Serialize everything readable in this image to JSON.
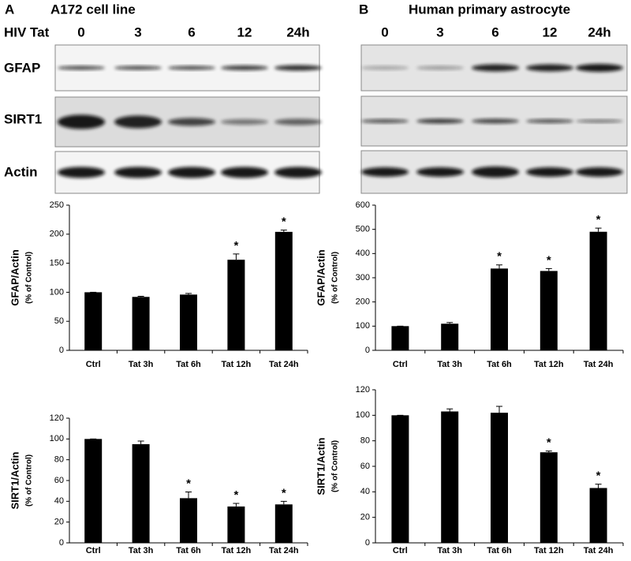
{
  "panels": [
    {
      "letter": "A",
      "title": "A172 cell line",
      "treatment_label": "HIV Tat",
      "lanes": [
        "0",
        "3",
        "6",
        "12",
        "24h"
      ],
      "blots": [
        "GFAP",
        "SIRT1",
        "Actin"
      ]
    },
    {
      "letter": "B",
      "title": "Human primary astrocyte",
      "lanes": [
        "0",
        "3",
        "6",
        "12",
        "24h"
      ]
    }
  ],
  "chart_data": [
    {
      "type": "bar",
      "ylabel": "GFAP/Actin",
      "ysublabel": "(% of Control)",
      "color": "#000000",
      "categories": [
        "Ctrl",
        "Tat 3h",
        "Tat 6h",
        "Tat 12h",
        "Tat 24h"
      ],
      "values": [
        100,
        92,
        96,
        156,
        204
      ],
      "errors": [
        0,
        1,
        2,
        10,
        3
      ],
      "significance": [
        null,
        null,
        null,
        "*",
        "*"
      ],
      "ylim": [
        0,
        250
      ],
      "yticks": [
        0,
        50,
        100,
        150,
        200,
        250
      ]
    },
    {
      "type": "bar",
      "ylabel": "SIRT1/Actin",
      "ysublabel": "(% of Control)",
      "color": "#000000",
      "categories": [
        "Ctrl",
        "Tat 3h",
        "Tat 6h",
        "Tat 12h",
        "Tat 24h"
      ],
      "values": [
        100,
        95,
        43,
        35,
        37
      ],
      "errors": [
        0,
        3,
        6,
        3,
        3
      ],
      "significance": [
        null,
        null,
        "*",
        "*",
        "*"
      ],
      "ylim": [
        0,
        120
      ],
      "yticks": [
        0,
        20,
        40,
        60,
        80,
        100,
        120
      ]
    },
    {
      "type": "bar",
      "ylabel": "GFAP/Actin",
      "ysublabel": "(% of Control)",
      "color": "#000000",
      "categories": [
        "Ctrl",
        "Tat 3h",
        "Tat 6h",
        "Tat 12h",
        "Tat 24h"
      ],
      "values": [
        100,
        110,
        338,
        328,
        490
      ],
      "errors": [
        0,
        5,
        15,
        10,
        15
      ],
      "significance": [
        null,
        null,
        "*",
        "*",
        "*"
      ],
      "ylim": [
        0,
        600
      ],
      "yticks": [
        0,
        100,
        200,
        300,
        400,
        500,
        600
      ]
    },
    {
      "type": "bar",
      "ylabel": "SIRT1/Actin",
      "ysublabel": "(% of Control)",
      "color": "#000000",
      "categories": [
        "Ctrl",
        "Tat 3h",
        "Tat 6h",
        "Tat 12h",
        "Tat 24h"
      ],
      "values": [
        100,
        103,
        102,
        71,
        43
      ],
      "errors": [
        0,
        2,
        5,
        1,
        3
      ],
      "significance": [
        null,
        null,
        null,
        "*",
        "*"
      ],
      "ylim": [
        0,
        120
      ],
      "yticks": [
        0,
        20,
        40,
        60,
        80,
        100,
        120
      ]
    }
  ]
}
